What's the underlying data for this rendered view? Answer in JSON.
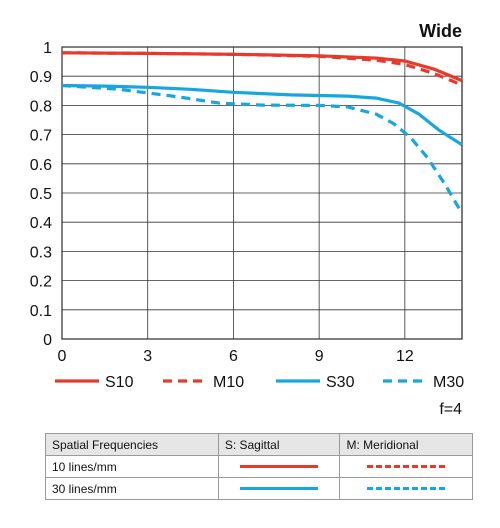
{
  "chart_data": {
    "type": "line",
    "title": "Wide",
    "xlabel": "",
    "ylabel": "",
    "xlim": [
      0,
      14
    ],
    "ylim": [
      0,
      1
    ],
    "x_ticks": [
      "0",
      "3",
      "6",
      "9",
      "12"
    ],
    "y_ticks": [
      "0",
      "0.1",
      "0.2",
      "0.3",
      "0.4",
      "0.5",
      "0.6",
      "0.7",
      "0.8",
      "0.9",
      "1"
    ],
    "grid": true,
    "legend_position": "bottom",
    "series": [
      {
        "name": "S10",
        "color": "#e8392a",
        "style": "solid",
        "x": [
          0,
          3,
          6,
          9,
          11,
          12,
          13,
          14
        ],
        "y": [
          0.98,
          0.978,
          0.975,
          0.97,
          0.962,
          0.952,
          0.925,
          0.885
        ]
      },
      {
        "name": "M10",
        "color": "#e8392a",
        "style": "dashed",
        "x": [
          0,
          3,
          6,
          9,
          11,
          12,
          13,
          14
        ],
        "y": [
          0.98,
          0.978,
          0.975,
          0.968,
          0.955,
          0.94,
          0.91,
          0.87
        ]
      },
      {
        "name": "S30",
        "color": "#17a7e0",
        "style": "solid",
        "x": [
          0,
          1.5,
          3,
          4.5,
          6,
          8,
          10,
          11,
          11.8,
          12.5,
          13.2,
          14
        ],
        "y": [
          0.868,
          0.866,
          0.862,
          0.855,
          0.845,
          0.836,
          0.832,
          0.825,
          0.808,
          0.77,
          0.715,
          0.665
        ]
      },
      {
        "name": "M30",
        "color": "#17a7e0",
        "style": "dashed",
        "x": [
          0,
          2,
          4,
          5.5,
          7,
          9,
          10,
          11,
          11.6,
          12.2,
          12.8,
          13.4,
          14
        ],
        "y": [
          0.868,
          0.855,
          0.83,
          0.808,
          0.801,
          0.8,
          0.795,
          0.77,
          0.738,
          0.69,
          0.62,
          0.53,
          0.43
        ]
      }
    ]
  },
  "note": "f=4",
  "table": {
    "headers": [
      "Spatial Frequencies",
      "S: Sagittal",
      "M: Meridional"
    ],
    "rows": [
      {
        "label": "10 lines/mm",
        "s_style": "solid-red",
        "m_style": "dash-red"
      },
      {
        "label": "30 lines/mm",
        "s_style": "solid-blue",
        "m_style": "dash-blue"
      }
    ]
  }
}
